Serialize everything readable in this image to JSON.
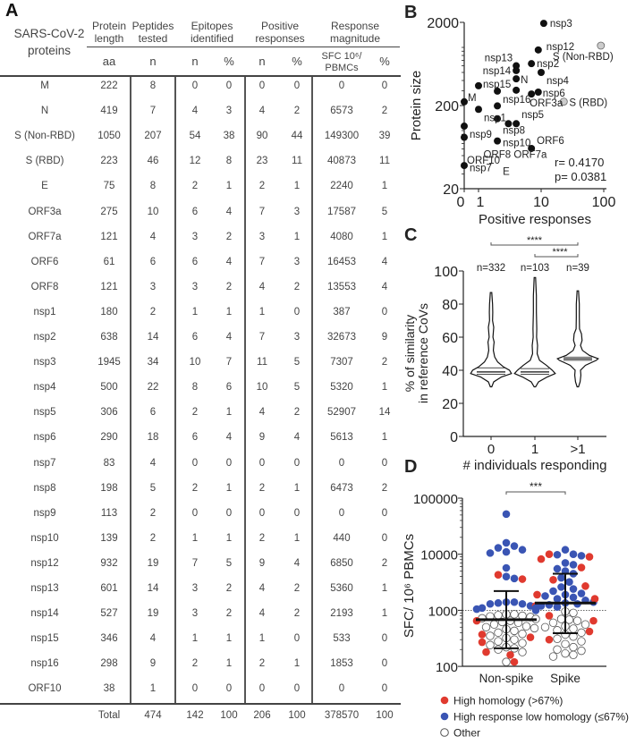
{
  "panels": {
    "a": "A",
    "b": "B",
    "c": "C",
    "d": "D"
  },
  "table": {
    "row_header": "SARS-CoV-2 proteins",
    "group_headers": [
      "Protein length",
      "Peptides tested",
      "Epitopes identified",
      "Positive responses",
      "Response magnitude"
    ],
    "sub_headers": [
      "aa",
      "n",
      "n",
      "%",
      "n",
      "%",
      "SFC 10⁶/ PBMCs",
      "%"
    ],
    "rows": [
      [
        "M",
        "222",
        "8",
        "0",
        "0",
        "0",
        "0",
        "0",
        "0"
      ],
      [
        "N",
        "419",
        "7",
        "4",
        "3",
        "4",
        "2",
        "6573",
        "2"
      ],
      [
        "S (Non-RBD)",
        "1050",
        "207",
        "54",
        "38",
        "90",
        "44",
        "149300",
        "39"
      ],
      [
        "S (RBD)",
        "223",
        "46",
        "12",
        "8",
        "23",
        "11",
        "40873",
        "11"
      ],
      [
        "E",
        "75",
        "8",
        "2",
        "1",
        "2",
        "1",
        "2240",
        "1"
      ],
      [
        "ORF3a",
        "275",
        "10",
        "6",
        "4",
        "7",
        "3",
        "17587",
        "5"
      ],
      [
        "ORF7a",
        "121",
        "4",
        "3",
        "2",
        "3",
        "1",
        "4080",
        "1"
      ],
      [
        "ORF6",
        "61",
        "6",
        "6",
        "4",
        "7",
        "3",
        "16453",
        "4"
      ],
      [
        "ORF8",
        "121",
        "3",
        "3",
        "2",
        "4",
        "2",
        "13553",
        "4"
      ],
      [
        "nsp1",
        "180",
        "2",
        "1",
        "1",
        "1",
        "0",
        "387",
        "0"
      ],
      [
        "nsp2",
        "638",
        "14",
        "6",
        "4",
        "7",
        "3",
        "32673",
        "9"
      ],
      [
        "nsp3",
        "1945",
        "34",
        "10",
        "7",
        "11",
        "5",
        "7307",
        "2"
      ],
      [
        "nsp4",
        "500",
        "22",
        "8",
        "6",
        "10",
        "5",
        "5320",
        "1"
      ],
      [
        "nsp5",
        "306",
        "6",
        "2",
        "1",
        "4",
        "2",
        "52907",
        "14"
      ],
      [
        "nsp6",
        "290",
        "18",
        "6",
        "4",
        "9",
        "4",
        "5613",
        "1"
      ],
      [
        "nsp7",
        "83",
        "4",
        "0",
        "0",
        "0",
        "0",
        "0",
        "0"
      ],
      [
        "nsp8",
        "198",
        "5",
        "2",
        "1",
        "2",
        "1",
        "6473",
        "2"
      ],
      [
        "nsp9",
        "113",
        "2",
        "0",
        "0",
        "0",
        "0",
        "0",
        "0"
      ],
      [
        "nsp10",
        "139",
        "2",
        "1",
        "1",
        "2",
        "1",
        "440",
        "0"
      ],
      [
        "nsp12",
        "932",
        "19",
        "7",
        "5",
        "9",
        "4",
        "6850",
        "2"
      ],
      [
        "nsp13",
        "601",
        "14",
        "3",
        "2",
        "4",
        "2",
        "5360",
        "1"
      ],
      [
        "nsp14",
        "527",
        "19",
        "3",
        "2",
        "4",
        "2",
        "2193",
        "1"
      ],
      [
        "nsp15",
        "346",
        "4",
        "1",
        "1",
        "1",
        "0",
        "533",
        "0"
      ],
      [
        "nsp16",
        "298",
        "9",
        "2",
        "1",
        "2",
        "1",
        "1853",
        "0"
      ],
      [
        "ORF10",
        "38",
        "1",
        "0",
        "0",
        "0",
        "0",
        "0",
        "0"
      ]
    ],
    "total": [
      "Total",
      "474",
      "142",
      "100",
      "206",
      "100",
      "378570",
      "100"
    ]
  },
  "chart_data": [
    {
      "type": "scatter",
      "xlabel": "Positive responses",
      "ylabel": "Protein size",
      "x_scale": "log (0 plotted on axis)",
      "y_scale": "log",
      "xticks": [
        "0",
        "1",
        "10",
        "100"
      ],
      "yticks": [
        "20",
        "200",
        "2000"
      ],
      "ylim": [
        20,
        2000
      ],
      "xlim": [
        0,
        100
      ],
      "annotation": [
        "r= 0.4170",
        "p= 0.0381"
      ],
      "points": [
        {
          "label": "nsp3",
          "x": 11,
          "y": 1945,
          "color": "#111111"
        },
        {
          "label": "nsp12",
          "x": 9,
          "y": 932,
          "color": "#111111"
        },
        {
          "label": "nsp13",
          "x": 4,
          "y": 601,
          "color": "#111111"
        },
        {
          "label": "nsp2",
          "x": 7,
          "y": 638,
          "color": "#111111"
        },
        {
          "label": "nsp14",
          "x": 4,
          "y": 527,
          "color": "#111111"
        },
        {
          "label": "nsp4",
          "x": 10,
          "y": 500,
          "color": "#111111"
        },
        {
          "label": "N",
          "x": 4,
          "y": 419,
          "color": "#111111"
        },
        {
          "label": "nsp15",
          "x": 1,
          "y": 346,
          "color": "#111111"
        },
        {
          "label": "nsp16",
          "x": 2,
          "y": 298,
          "color": "#111111"
        },
        {
          "label": "nsp5",
          "x": 4,
          "y": 306,
          "color": "#111111"
        },
        {
          "label": "nsp6",
          "x": 9,
          "y": 290,
          "color": "#111111"
        },
        {
          "label": "ORF3a",
          "x": 7,
          "y": 275,
          "color": "#111111"
        },
        {
          "label": "M",
          "x": 0,
          "y": 222,
          "color": "#111111"
        },
        {
          "label": "nsp1",
          "x": 1,
          "y": 180,
          "color": "#111111"
        },
        {
          "label": "nsp8",
          "x": 2,
          "y": 198,
          "color": "#111111"
        },
        {
          "label": "nsp10",
          "x": 2,
          "y": 139,
          "color": "#111111"
        },
        {
          "label": "ORF7a",
          "x": 3,
          "y": 121,
          "color": "#111111"
        },
        {
          "label": "ORF8",
          "x": 4,
          "y": 121,
          "color": "#111111"
        },
        {
          "label": "nsp9",
          "x": 0,
          "y": 113,
          "color": "#111111"
        },
        {
          "label": "nsp7",
          "x": 0,
          "y": 83,
          "color": "#111111"
        },
        {
          "label": "E",
          "x": 2,
          "y": 75,
          "color": "#111111"
        },
        {
          "label": "ORF6",
          "x": 7,
          "y": 61,
          "color": "#111111"
        },
        {
          "label": "ORF10",
          "x": 0,
          "y": 38,
          "color": "#111111"
        },
        {
          "label": "S (RBD)",
          "x": 23,
          "y": 223,
          "color": "#cccccc"
        },
        {
          "label": "S (Non-RBD)",
          "x": 90,
          "y": 1050,
          "color": "#cccccc"
        }
      ]
    },
    {
      "type": "violin",
      "xlabel": "# individuals responding",
      "ylabel": "% of similarity in reference CoVs",
      "categories": [
        "0",
        "1",
        ">1"
      ],
      "n_labels": [
        "n=332",
        "n=103",
        "n=39"
      ],
      "ylim": [
        0,
        100
      ],
      "yticks": [
        "0",
        "20",
        "40",
        "60",
        "80",
        "100"
      ],
      "significance": [
        {
          "from": "0",
          "to": ">1",
          "label": "****"
        },
        {
          "from": "1",
          "to": ">1",
          "label": "****"
        }
      ],
      "series": [
        {
          "category": "0",
          "median": 39,
          "q1": 37.5,
          "q3": 41.5,
          "density": [
            [
              30,
              0
            ],
            [
              33,
              0.1
            ],
            [
              36,
              0.5
            ],
            [
              38,
              1
            ],
            [
              40,
              0.9
            ],
            [
              42,
              0.6
            ],
            [
              45,
              0.3
            ],
            [
              48,
              0.15
            ],
            [
              52,
              0.08
            ],
            [
              55,
              0.1
            ],
            [
              57,
              0.12
            ],
            [
              60,
              0.06
            ],
            [
              63,
              0.08
            ],
            [
              66,
              0.1
            ],
            [
              70,
              0.04
            ],
            [
              75,
              0.05
            ],
            [
              80,
              0.04
            ],
            [
              87,
              0
            ]
          ]
        },
        {
          "category": "1",
          "median": 39,
          "q1": 37.5,
          "q3": 41,
          "density": [
            [
              30,
              0
            ],
            [
              33,
              0.15
            ],
            [
              36,
              0.6
            ],
            [
              38,
              1
            ],
            [
              40,
              0.85
            ],
            [
              43,
              0.55
            ],
            [
              46,
              0.2
            ],
            [
              50,
              0.08
            ],
            [
              55,
              0.1
            ],
            [
              60,
              0.05
            ],
            [
              65,
              0.06
            ],
            [
              75,
              0.04
            ],
            [
              85,
              0.04
            ],
            [
              96,
              0
            ]
          ]
        },
        {
          "category": ">1",
          "median": 47,
          "q1": 46,
          "q3": 48,
          "density": [
            [
              30,
              0
            ],
            [
              33,
              0.08
            ],
            [
              37,
              0.12
            ],
            [
              40,
              0.1
            ],
            [
              43,
              0.35
            ],
            [
              46,
              0.9
            ],
            [
              47,
              1
            ],
            [
              49,
              0.55
            ],
            [
              52,
              0.2
            ],
            [
              55,
              0.1
            ],
            [
              58,
              0.18
            ],
            [
              62,
              0.15
            ],
            [
              65,
              0.05
            ],
            [
              72,
              0.04
            ],
            [
              80,
              0.04
            ],
            [
              88,
              0
            ]
          ]
        }
      ]
    },
    {
      "type": "scatter",
      "ylabel": "SFC/ 10⁶ PBMCs",
      "y_scale": "log",
      "ylim": [
        100,
        100000
      ],
      "yticks": [
        "100",
        "1000",
        "10000",
        "100000"
      ],
      "reference_line": 1000,
      "categories": [
        "Non-spike",
        "Spike"
      ],
      "significance": [
        {
          "from": "Non-spike",
          "to": "Spike",
          "label": "***"
        }
      ],
      "legend": [
        {
          "name": "High homology (>67%)",
          "color": "#e03a2f"
        },
        {
          "name": "High response low homology (≤67%)",
          "color": "#3a55b4"
        },
        {
          "name": "Other",
          "color": "#ffffff"
        }
      ],
      "legend_position": "bottom",
      "series": [
        {
          "category": "Non-spike",
          "median": 680,
          "upper": 2200,
          "lower": 210,
          "blue": [
            52000,
            16000,
            14000,
            13000,
            12000,
            11000,
            10500,
            5700,
            4000,
            3700,
            1400,
            1400,
            1350,
            1300,
            1300,
            1200,
            1100,
            1050,
            1050,
            1000
          ],
          "red": [
            4300,
            3600,
            1200,
            650,
            370,
            330,
            270,
            180,
            160,
            120
          ],
          "other": [
            850,
            850,
            820,
            800,
            780,
            760,
            720,
            700,
            650,
            620,
            600,
            560,
            520,
            500,
            480,
            460,
            430,
            400,
            380,
            350,
            320,
            300,
            280,
            260,
            240,
            220,
            210,
            200,
            180,
            120
          ]
        },
        {
          "category": "Spike",
          "median": 1350,
          "upper": 4500,
          "lower": 390,
          "blue": [
            12000,
            10000,
            9800,
            9400,
            7000,
            6500,
            5500,
            5000,
            4500,
            3800,
            3200,
            2600,
            2400,
            2200,
            2000,
            1900,
            1800,
            1700,
            1600,
            1500,
            1400,
            1350,
            1300,
            1250,
            1200,
            1150,
            1100
          ],
          "red": [
            10000,
            9000,
            8200,
            5800,
            3500,
            2700,
            1900,
            1600,
            800,
            650,
            420,
            300
          ],
          "other": [
            950,
            900,
            700,
            680,
            650,
            600,
            560,
            520,
            500,
            470,
            440,
            400,
            370,
            340,
            310,
            280,
            250,
            220,
            200,
            190,
            170,
            160,
            150
          ]
        }
      ]
    }
  ]
}
